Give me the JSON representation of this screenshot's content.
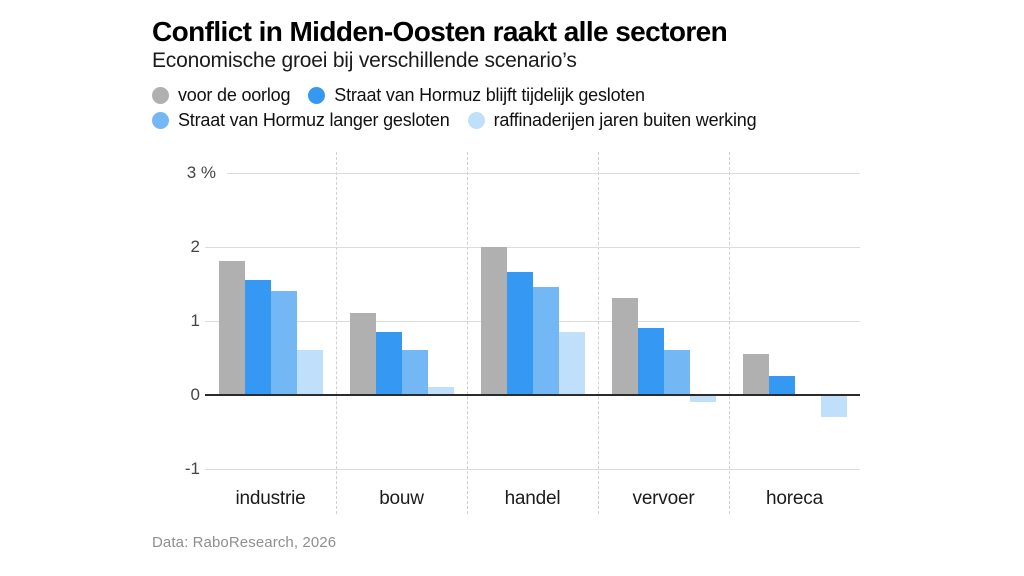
{
  "header": {
    "title": "Conflict in Midden-Oosten raakt alle sectoren",
    "subtitle": "Economische groei bij verschillende scenario’s"
  },
  "legend": {
    "position": "top-left",
    "items": [
      {
        "label": "voor de oorlog",
        "color": "#b1b0b0"
      },
      {
        "label": "Straat van Hormuz blijft tijdelijk gesloten",
        "color": "#3598f2"
      },
      {
        "label": "Straat van Hormuz langer gesloten",
        "color": "#73b8f4"
      },
      {
        "label": "raffinaderijen jaren buiten werking",
        "color": "#c0dffb"
      }
    ]
  },
  "chart_data": {
    "type": "bar",
    "title": "Conflict in Midden-Oosten raakt alle sectoren",
    "subtitle": "Economische groei bij verschillende scenario’s",
    "categories": [
      "industrie",
      "bouw",
      "handel",
      "vervoer",
      "horeca"
    ],
    "series": [
      {
        "name": "voor de oorlog",
        "color": "#b1b0b0",
        "values": [
          1.8,
          1.1,
          2.0,
          1.3,
          0.55
        ]
      },
      {
        "name": "Straat van Hormuz blijft tijdelijk gesloten",
        "color": "#3598f2",
        "values": [
          1.55,
          0.85,
          1.65,
          0.9,
          0.25
        ]
      },
      {
        "name": "Straat van Hormuz langer gesloten",
        "color": "#73b8f4",
        "values": [
          1.4,
          0.6,
          1.45,
          0.6,
          0
        ]
      },
      {
        "name": "raffinaderijen jaren buiten werking",
        "color": "#c0dffb",
        "values": [
          0.6,
          0.1,
          0.85,
          -0.1,
          -0.3
        ]
      }
    ],
    "xlabel": "",
    "ylabel": "%",
    "ylim": [
      -1.35,
      3.3
    ],
    "yticks": [
      {
        "label": "3 %",
        "value": 3
      },
      {
        "label": "2",
        "value": 2
      },
      {
        "label": "1",
        "value": 1
      },
      {
        "label": "0",
        "value": 0
      },
      {
        "label": "-1",
        "value": -1
      }
    ],
    "grid": "horizontal light gridlines; dashed vertical category separators; bold zero baseline",
    "legend_position": "top-left"
  },
  "footer": {
    "source": "Data: RaboResearch, 2026"
  }
}
